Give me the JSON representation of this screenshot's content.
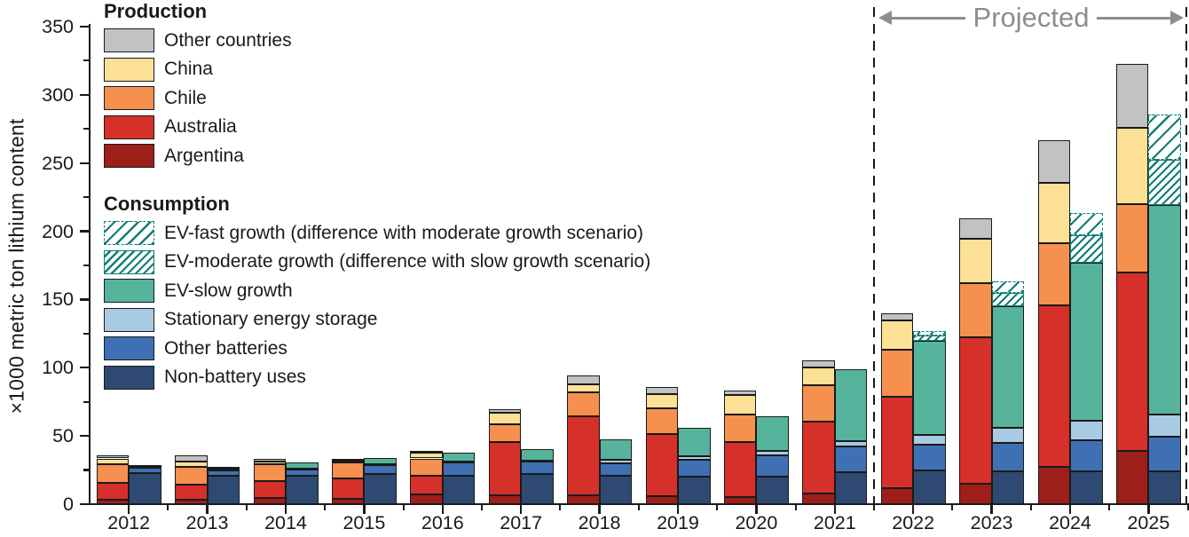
{
  "chart_data": {
    "type": "bar",
    "title": "",
    "ylabel": "×1000 metric ton lithium content",
    "xlabel": "",
    "ylim": [
      0,
      350
    ],
    "ytick_step_major": 50,
    "ytick_step_minor": 25,
    "grid": false,
    "axis_color": "#1a1a1a",
    "years": [
      "2012",
      "2013",
      "2014",
      "2015",
      "2016",
      "2017",
      "2018",
      "2019",
      "2020",
      "2021",
      "2022",
      "2023",
      "2024",
      "2025"
    ],
    "projected": {
      "label": "Projected",
      "start_year": "2022",
      "color": "#8d8d8d"
    },
    "legend": {
      "production_title": "Production",
      "consumption_title": "Consumption",
      "position": "top-left-overlay"
    },
    "production_series": [
      {
        "name": "Other countries",
        "color": "#c2c2c2",
        "pattern": "solid",
        "border": "dark",
        "values": [
          2,
          4,
          1.5,
          1,
          1.5,
          2.5,
          6.5,
          5.5,
          3,
          5,
          5.5,
          15,
          31,
          47
        ]
      },
      {
        "name": "China",
        "color": "#fbe096",
        "pattern": "solid",
        "border": "dark",
        "values": [
          4,
          4,
          2.5,
          1.5,
          4,
          8.5,
          6,
          10,
          14,
          13.5,
          21,
          32.5,
          44,
          56
        ]
      },
      {
        "name": "Chile",
        "color": "#f6904f",
        "pattern": "solid",
        "border": "dark",
        "values": [
          14,
          13,
          12,
          11.5,
          13,
          13,
          17.5,
          19,
          20.5,
          26.5,
          35,
          39.5,
          45.5,
          50.5
        ]
      },
      {
        "name": "Australia",
        "color": "#d53029",
        "pattern": "solid",
        "border": "dark",
        "values": [
          12,
          11,
          12.5,
          15,
          13.5,
          39,
          58,
          45.5,
          40,
          53,
          66.5,
          107.5,
          119,
          130.5
        ]
      },
      {
        "name": "Argentina",
        "color": "#9c1f1a",
        "pattern": "solid",
        "border": "dark",
        "values": [
          3.5,
          3.5,
          4.5,
          4,
          7,
          6.5,
          6.5,
          6,
          5.5,
          7.5,
          12,
          15,
          27,
          39
        ]
      }
    ],
    "consumption_series": [
      {
        "name": "EV-fast growth (difference with moderate growth scenario)",
        "color": "#107d74",
        "pattern": "hatch-sparse",
        "border": "teal-dashed",
        "values": [
          0,
          0,
          0,
          0,
          0,
          0,
          0,
          0,
          0,
          0,
          3.5,
          8,
          16.5,
          33
        ]
      },
      {
        "name": "EV-moderate growth (difference with slow growth scenario)",
        "color": "#107d74",
        "pattern": "hatch-dense",
        "border": "teal-solid",
        "values": [
          0,
          0,
          0,
          0,
          0,
          0,
          0,
          0,
          0,
          0,
          3.5,
          10,
          20,
          33
        ]
      },
      {
        "name": "EV-slow growth",
        "color": "#56b39c",
        "pattern": "solid",
        "border": "dark",
        "values": [
          1,
          1.5,
          4.3,
          4.7,
          6,
          8,
          15,
          21,
          25,
          53,
          69,
          89,
          116,
          153.5
        ]
      },
      {
        "name": "Stationary energy storage",
        "color": "#a8cbe2",
        "pattern": "solid",
        "border": "dark",
        "values": [
          0.5,
          0.8,
          0.8,
          0.7,
          1,
          1.2,
          2.3,
          2.7,
          3.7,
          3.7,
          7.5,
          11,
          14,
          16.5
        ]
      },
      {
        "name": "Other batteries",
        "color": "#3f70b4",
        "pattern": "solid",
        "border": "dark",
        "values": [
          4.5,
          4,
          4.5,
          6.5,
          9.5,
          9,
          9,
          12.5,
          15.5,
          19,
          18.5,
          21,
          23,
          25.5
        ]
      },
      {
        "name": "Non-battery uses",
        "color": "#2e4a72",
        "pattern": "solid",
        "border": "dark",
        "values": [
          22.5,
          21,
          21,
          22,
          21,
          22,
          21,
          20,
          20,
          23.5,
          25,
          24,
          24,
          24
        ]
      }
    ]
  }
}
